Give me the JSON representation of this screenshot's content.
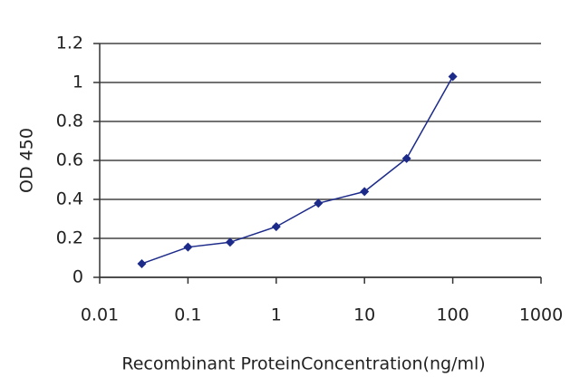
{
  "chart_data": {
    "type": "line",
    "x_label": "Recombinant ProteinConcentration(ng/ml)",
    "y_label": "OD 450",
    "x": [
      0.03,
      0.1,
      0.3,
      1,
      3,
      10,
      30,
      100
    ],
    "series": [
      {
        "color": "#1c2a8a",
        "values": [
          0.07,
          0.155,
          0.18,
          0.26,
          0.38,
          0.44,
          0.61,
          1.03
        ]
      }
    ],
    "xlim": [
      0.01,
      1000
    ],
    "xticks": [
      0.01,
      0.1,
      1,
      10,
      100,
      1000
    ],
    "x_log": true,
    "ylim": [
      0,
      1.2
    ],
    "yticks": [
      0,
      0.2,
      0.4,
      0.6,
      0.8,
      1,
      1.2
    ],
    "grid": true
  }
}
